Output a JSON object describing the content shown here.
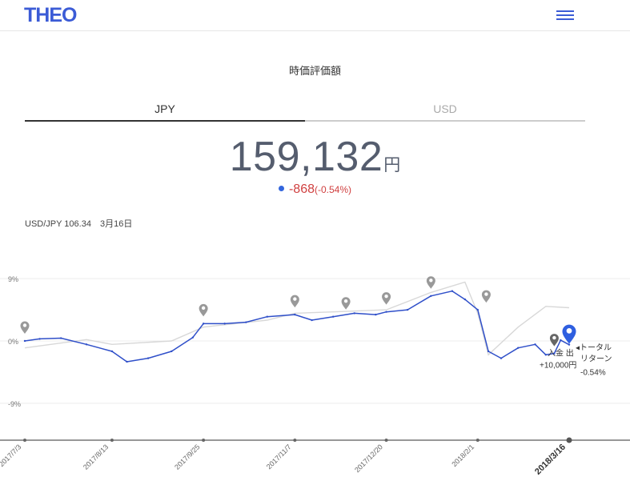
{
  "header": {
    "logo": "THEO",
    "menu_icon": "hamburger-icon"
  },
  "section": {
    "title": "時価評価額"
  },
  "tabs": [
    {
      "label": "JPY",
      "active": true
    },
    {
      "label": "USD",
      "active": false
    }
  ],
  "valuation": {
    "amount": "159,132",
    "unit": "円",
    "change": "-868",
    "change_pct": "(-0.54%)"
  },
  "fx": {
    "pair_label": "USD/JPY 106.34",
    "date": "3月16日"
  },
  "colors": {
    "brand": "#3b5bd6",
    "portfolio_line": "#2f4fc9",
    "benchmark_line": "#d8d8d8",
    "negative": "#d04040",
    "marker": "#999999",
    "current_marker": "#2f5fe0"
  },
  "chart_data": {
    "type": "line",
    "y_ticks": [
      "9%",
      "0%",
      "-9%"
    ],
    "x_ticks": [
      "2017/7/3",
      "2017/8/13",
      "2017/9/25",
      "2017/11/7",
      "2017/12/20",
      "2018/2/1",
      "2018/3/16"
    ],
    "current_x_tick": "2018/3/16",
    "ylim": [
      -14,
      10
    ],
    "series": [
      {
        "name": "",
        "role": "portfolio",
        "x": [
          "2017/7/3",
          "2017/7/10",
          "2017/7/20",
          "2017/8/1",
          "2017/8/13",
          "2017/8/20",
          "2017/8/30",
          "2017/9/10",
          "2017/9/20",
          "2017/9/25",
          "2017/10/5",
          "2017/10/15",
          "2017/10/25",
          "2017/11/7",
          "2017/11/15",
          "2017/11/25",
          "2017/12/5",
          "2017/12/15",
          "2017/12/20",
          "2017/12/30",
          "2018/1/10",
          "2018/1/20",
          "2018/1/26",
          "2018/2/1",
          "2018/2/6",
          "2018/2/12",
          "2018/2/20",
          "2018/2/28",
          "2018/3/5",
          "2018/3/9",
          "2018/3/12",
          "2018/3/16"
        ],
        "values": [
          0.0,
          0.3,
          0.4,
          -0.5,
          -1.5,
          -3.0,
          -2.5,
          -1.5,
          0.5,
          2.5,
          2.5,
          2.7,
          3.5,
          3.8,
          3.0,
          3.5,
          4.0,
          3.8,
          4.2,
          4.5,
          6.5,
          7.2,
          6.0,
          4.5,
          -1.5,
          -2.5,
          -1.0,
          -0.5,
          -2.0,
          -1.8,
          0.1,
          -0.54
        ]
      },
      {
        "name": "",
        "role": "benchmark",
        "x": [
          "2017/7/3",
          "2017/8/1",
          "2017/8/13",
          "2017/9/10",
          "2017/9/25",
          "2017/10/25",
          "2017/11/7",
          "2017/11/25",
          "2017/12/20",
          "2018/1/10",
          "2018/1/26",
          "2018/2/1",
          "2018/2/6",
          "2018/2/20",
          "2018/3/5",
          "2018/3/16"
        ],
        "values": [
          -1.0,
          0.2,
          -0.5,
          0.0,
          2.0,
          3.0,
          4.0,
          4.2,
          4.5,
          7.0,
          8.5,
          4.0,
          -2.0,
          2.0,
          5.0,
          4.8
        ]
      }
    ],
    "event_markers": [
      "2017/7/3",
      "2017/9/25",
      "2017/11/7",
      "2017/12/1",
      "2017/12/20",
      "2018/1/10",
      "2018/2/5",
      "2018/3/9"
    ],
    "annotations": {
      "event": "入金 出",
      "event_amount": "+10,000円",
      "return_label_1": "◂トータル",
      "return_label_2": "リターン",
      "return_value": "-0.54%"
    }
  }
}
